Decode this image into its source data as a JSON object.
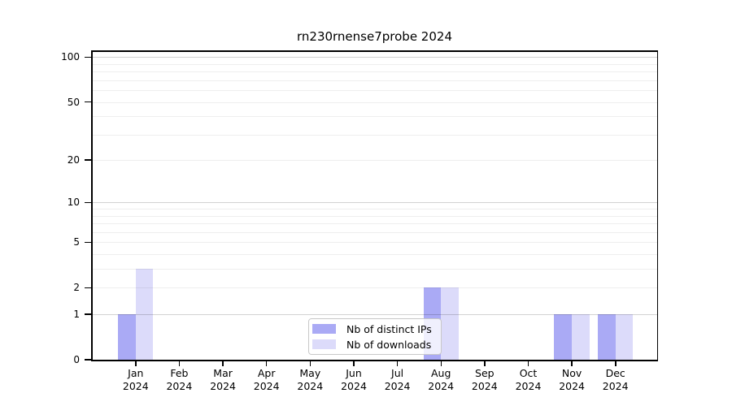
{
  "title": "rn230rnense7probe 2024",
  "chart_data": {
    "type": "bar",
    "title": "rn230rnense7probe 2024",
    "y_scale": "log1p",
    "ylim": [
      0,
      111
    ],
    "y_ticks": [
      0,
      1,
      2,
      5,
      10,
      20,
      50,
      100
    ],
    "gridlines": [
      1,
      2,
      3,
      4,
      5,
      6,
      7,
      8,
      9,
      10,
      20,
      30,
      40,
      50,
      60,
      70,
      80,
      90,
      100
    ],
    "major_gridlines": [
      1,
      10,
      100
    ],
    "grid": true,
    "categories": [
      "Jan",
      "Feb",
      "Mar",
      "Apr",
      "May",
      "Jun",
      "Jul",
      "Aug",
      "Sep",
      "Oct",
      "Nov",
      "Dec"
    ],
    "year": "2024",
    "series": [
      {
        "name": "Nb of distinct IPs",
        "color": "#aaaaf5",
        "values": [
          1,
          0,
          0,
          0,
          0,
          0,
          0,
          2,
          0,
          0,
          1,
          1
        ]
      },
      {
        "name": "Nb of downloads",
        "color": "#dcdbfa",
        "values": [
          3,
          0,
          0,
          0,
          0,
          0,
          0,
          2,
          0,
          0,
          1,
          1
        ]
      }
    ],
    "legend_position": "bottom-center"
  },
  "colors": {
    "background": "#ffffff",
    "axis": "#000000",
    "grid_minor": "#ececec",
    "grid_major": "#d2d2d2",
    "bar_distinct_ips": "#aaaaf5",
    "bar_downloads": "#dcdbfa"
  }
}
